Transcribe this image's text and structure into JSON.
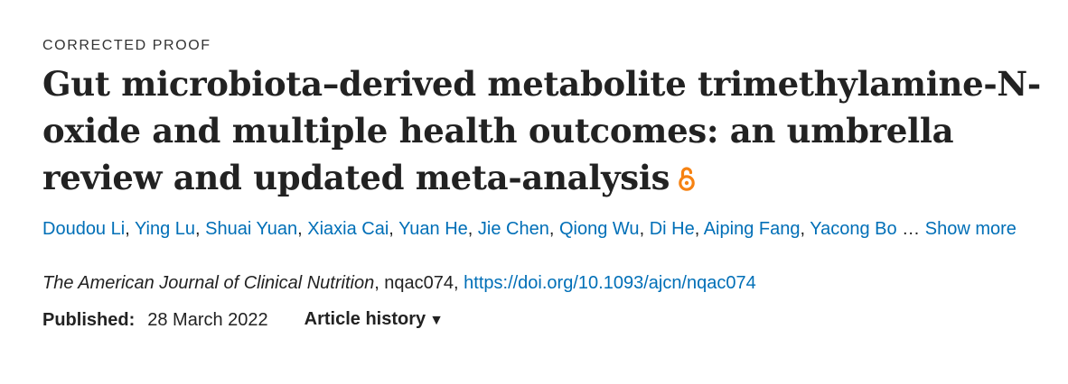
{
  "article": {
    "status": "CORRECTED PROOF",
    "title": "Gut microbiota–derived metabolite trimethylamine-N-oxide and multiple health outcomes: an umbrella review and updated meta-analysis",
    "open_access_icon": "open-access-lock-icon",
    "authors": [
      "Doudou Li",
      "Ying Lu",
      "Shuai Yuan",
      "Xiaxia Cai",
      "Yuan He",
      "Jie Chen",
      "Qiong Wu",
      "Di He",
      "Aiping Fang",
      "Yacong Bo"
    ],
    "authors_separator": ", ",
    "ellipsis": " … ",
    "show_more_label": "Show more",
    "journal": "The American Journal of Clinical Nutrition",
    "article_id": ", nqac074, ",
    "doi_url": "https://doi.org/10.1093/ajcn/nqac074",
    "published_label": "Published:",
    "published_date": "28 March 2022",
    "history_label": "Article history",
    "history_arrow": "▼"
  },
  "colors": {
    "link": "#006fb7",
    "text": "#222222",
    "open_access": "#f68212"
  }
}
